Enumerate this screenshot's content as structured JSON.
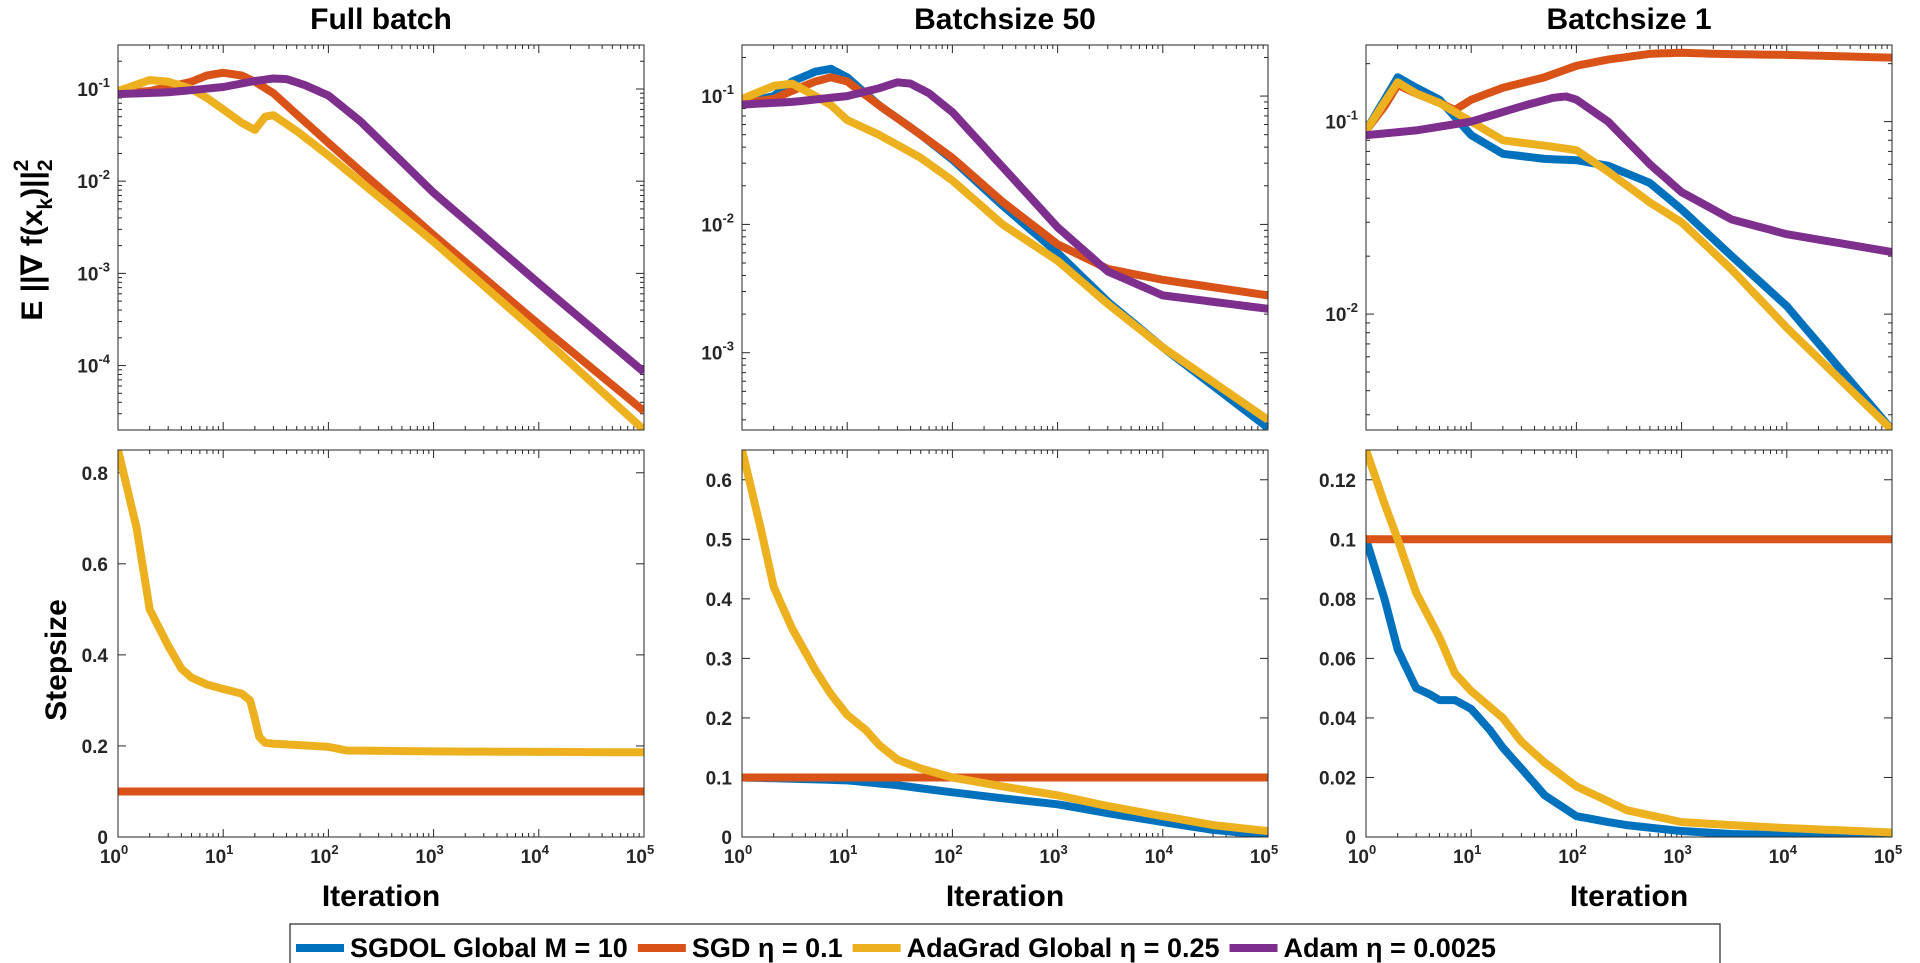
{
  "chart_data": [
    {
      "type": "line",
      "panel": "top-left",
      "title": "Full batch",
      "xscale": "log",
      "yscale": "log",
      "xlim": [
        1,
        100000
      ],
      "ylim": [
        2e-05,
        0.3
      ],
      "ylabel": "E ||∇ f(x_k)||_2^2",
      "xlabel": "",
      "yticks": [
        0.0001,
        0.001,
        0.01,
        0.1
      ],
      "series": [
        {
          "name": "SGD",
          "x": [
            1,
            2,
            3,
            5,
            7,
            10,
            15,
            20,
            30,
            100,
            1000,
            10000,
            100000
          ],
          "y": [
            0.09,
            0.095,
            0.105,
            0.12,
            0.14,
            0.15,
            0.14,
            0.12,
            0.09,
            0.026,
            0.0026,
            0.00028,
            3.2e-05
          ]
        },
        {
          "name": "AdaGrad Global",
          "x": [
            1,
            2,
            3,
            5,
            7,
            10,
            15,
            20,
            25,
            30,
            50,
            100,
            150,
            1000,
            10000,
            100000
          ],
          "y": [
            0.095,
            0.125,
            0.12,
            0.1,
            0.08,
            0.06,
            0.043,
            0.036,
            0.05,
            0.052,
            0.035,
            0.019,
            0.013,
            0.0022,
            0.00022,
            2e-05
          ]
        },
        {
          "name": "Adam",
          "x": [
            1,
            3,
            10,
            20,
            30,
            40,
            60,
            100,
            200,
            1000,
            10000,
            100000
          ],
          "y": [
            0.088,
            0.092,
            0.105,
            0.122,
            0.13,
            0.128,
            0.11,
            0.085,
            0.045,
            0.0075,
            0.00078,
            8.5e-05
          ]
        }
      ]
    },
    {
      "type": "line",
      "panel": "top-middle",
      "title": "Batchsize 50",
      "xscale": "log",
      "yscale": "log",
      "xlim": [
        1,
        100000
      ],
      "ylim": [
        0.00025,
        0.25
      ],
      "yticks": [
        0.001,
        0.01,
        0.1
      ],
      "series": [
        {
          "name": "SGDOL Global  M = 10",
          "x": [
            1,
            2,
            3,
            5,
            7,
            10,
            20,
            50,
            100,
            300,
            1000,
            3000,
            10000,
            100000
          ],
          "y": [
            0.088,
            0.1,
            0.13,
            0.155,
            0.163,
            0.14,
            0.085,
            0.05,
            0.032,
            0.014,
            0.006,
            0.0025,
            0.0011,
            0.00026
          ]
        },
        {
          "name": "SGD",
          "x": [
            1,
            2,
            3,
            5,
            7,
            10,
            20,
            50,
            100,
            300,
            1000,
            3000,
            10000,
            100000
          ],
          "y": [
            0.088,
            0.095,
            0.11,
            0.13,
            0.14,
            0.13,
            0.085,
            0.05,
            0.033,
            0.015,
            0.007,
            0.0045,
            0.0037,
            0.0028
          ]
        },
        {
          "name": "AdaGrad Global",
          "x": [
            1,
            2,
            3,
            5,
            7,
            10,
            20,
            50,
            100,
            300,
            1000,
            3000,
            10000,
            100000
          ],
          "y": [
            0.095,
            0.12,
            0.125,
            0.1,
            0.085,
            0.065,
            0.05,
            0.033,
            0.022,
            0.01,
            0.0052,
            0.0024,
            0.0011,
            0.0003
          ]
        },
        {
          "name": "Adam",
          "x": [
            1,
            3,
            10,
            20,
            30,
            40,
            60,
            100,
            300,
            1000,
            3000,
            10000,
            100000
          ],
          "y": [
            0.086,
            0.09,
            0.1,
            0.115,
            0.128,
            0.125,
            0.105,
            0.075,
            0.028,
            0.0095,
            0.0043,
            0.0028,
            0.0022
          ]
        }
      ]
    },
    {
      "type": "line",
      "panel": "top-right",
      "title": "Batchsize 1",
      "xscale": "log",
      "yscale": "log",
      "xlim": [
        1,
        100000
      ],
      "ylim": [
        0.0025,
        0.25
      ],
      "yticks": [
        0.01,
        0.1
      ],
      "series": [
        {
          "name": "SGDOL Global  M = 10",
          "x": [
            1,
            1.5,
            2,
            3,
            5,
            10,
            20,
            50,
            100,
            200,
            500,
            1000,
            3000,
            10000,
            100000
          ],
          "y": [
            0.09,
            0.13,
            0.17,
            0.15,
            0.13,
            0.085,
            0.068,
            0.064,
            0.063,
            0.059,
            0.048,
            0.035,
            0.02,
            0.011,
            0.0025
          ]
        },
        {
          "name": "SGD",
          "x": [
            1,
            1.5,
            2,
            3,
            5,
            7,
            10,
            20,
            50,
            100,
            200,
            500,
            1000,
            2000,
            10000,
            100000
          ],
          "y": [
            0.09,
            0.12,
            0.155,
            0.14,
            0.125,
            0.115,
            0.13,
            0.15,
            0.17,
            0.195,
            0.21,
            0.225,
            0.228,
            0.225,
            0.222,
            0.215
          ]
        },
        {
          "name": "AdaGrad Global",
          "x": [
            1,
            2,
            3,
            5,
            10,
            20,
            50,
            100,
            200,
            500,
            1000,
            3000,
            10000,
            100000
          ],
          "y": [
            0.09,
            0.16,
            0.14,
            0.125,
            0.1,
            0.08,
            0.075,
            0.071,
            0.055,
            0.038,
            0.03,
            0.017,
            0.0085,
            0.0025
          ]
        },
        {
          "name": "Adam",
          "x": [
            1,
            3,
            10,
            30,
            60,
            80,
            100,
            200,
            500,
            1000,
            3000,
            10000,
            100000
          ],
          "y": [
            0.085,
            0.09,
            0.1,
            0.12,
            0.133,
            0.135,
            0.13,
            0.1,
            0.06,
            0.043,
            0.031,
            0.026,
            0.021
          ]
        }
      ]
    },
    {
      "type": "line",
      "panel": "bottom-left",
      "title": "",
      "xscale": "log",
      "yscale": "linear",
      "xlim": [
        1,
        100000
      ],
      "ylim": [
        0,
        0.85
      ],
      "yticks": [
        0,
        0.2,
        0.4,
        0.6,
        0.8
      ],
      "ytick_labels": [
        "0",
        "0.2",
        "0.4",
        "0.6",
        "0.8"
      ],
      "xlabel": "Iteration",
      "ylabel": "Stepsize",
      "series": [
        {
          "name": "SGD",
          "x": [
            1,
            100000
          ],
          "y": [
            0.1,
            0.1
          ]
        },
        {
          "name": "AdaGrad Global",
          "x": [
            1,
            1.5,
            2,
            3,
            4,
            5,
            7,
            10,
            15,
            18,
            20,
            22,
            25,
            30,
            50,
            100,
            150,
            1000,
            10000,
            100000
          ],
          "y": [
            0.85,
            0.68,
            0.5,
            0.42,
            0.37,
            0.35,
            0.335,
            0.325,
            0.315,
            0.3,
            0.26,
            0.22,
            0.207,
            0.205,
            0.202,
            0.198,
            0.19,
            0.188,
            0.187,
            0.186
          ]
        }
      ]
    },
    {
      "type": "line",
      "panel": "bottom-middle",
      "title": "",
      "xscale": "log",
      "yscale": "linear",
      "xlim": [
        1,
        100000
      ],
      "ylim": [
        0,
        0.65
      ],
      "yticks": [
        0,
        0.1,
        0.2,
        0.3,
        0.4,
        0.5,
        0.6
      ],
      "ytick_labels": [
        "0",
        "0.1",
        "0.2",
        "0.3",
        "0.4",
        "0.5",
        "0.6"
      ],
      "xlabel": "Iteration",
      "series": [
        {
          "name": "SGDOL Global  M = 10",
          "x": [
            1,
            3,
            10,
            30,
            100,
            300,
            1000,
            3000,
            10000,
            30000,
            100000
          ],
          "y": [
            0.1,
            0.098,
            0.095,
            0.087,
            0.075,
            0.065,
            0.055,
            0.04,
            0.025,
            0.012,
            0.003
          ]
        },
        {
          "name": "SGD",
          "x": [
            1,
            100000
          ],
          "y": [
            0.1,
            0.1
          ]
        },
        {
          "name": "AdaGrad Global",
          "x": [
            1,
            1.5,
            2,
            3,
            5,
            7,
            10,
            15,
            20,
            30,
            50,
            100,
            300,
            1000,
            3000,
            10000,
            30000,
            100000
          ],
          "y": [
            0.65,
            0.52,
            0.42,
            0.35,
            0.28,
            0.24,
            0.205,
            0.18,
            0.155,
            0.13,
            0.115,
            0.1,
            0.085,
            0.07,
            0.052,
            0.035,
            0.02,
            0.01
          ]
        }
      ]
    },
    {
      "type": "line",
      "panel": "bottom-right",
      "title": "",
      "xscale": "log",
      "yscale": "linear",
      "xlim": [
        1,
        100000
      ],
      "ylim": [
        0,
        0.13
      ],
      "yticks": [
        0,
        0.02,
        0.04,
        0.06,
        0.08,
        0.1,
        0.12
      ],
      "ytick_labels": [
        "0",
        "0.02",
        "0.04",
        "0.06",
        "0.08",
        "0.1",
        "0.12"
      ],
      "xlabel": "Iteration",
      "series": [
        {
          "name": "SGDOL Global  M = 10",
          "x": [
            1,
            1.5,
            2,
            3,
            4,
            5,
            7,
            10,
            15,
            20,
            30,
            50,
            100,
            200,
            300,
            1000,
            3000,
            10000,
            100000
          ],
          "y": [
            0.1,
            0.08,
            0.063,
            0.05,
            0.048,
            0.046,
            0.046,
            0.043,
            0.036,
            0.03,
            0.023,
            0.014,
            0.007,
            0.005,
            0.004,
            0.002,
            0.001,
            0.0006,
            0.0002
          ]
        },
        {
          "name": "SGD",
          "x": [
            1,
            100000
          ],
          "y": [
            0.1,
            0.1
          ]
        },
        {
          "name": "AdaGrad Global",
          "x": [
            1,
            1.5,
            2,
            3,
            5,
            7,
            10,
            20,
            30,
            50,
            100,
            200,
            300,
            1000,
            3000,
            10000,
            100000
          ],
          "y": [
            0.13,
            0.112,
            0.1,
            0.082,
            0.067,
            0.055,
            0.049,
            0.04,
            0.032,
            0.025,
            0.017,
            0.012,
            0.009,
            0.005,
            0.004,
            0.003,
            0.0015
          ]
        }
      ]
    }
  ],
  "colors": {
    "SGDOL Global  M = 10": "#0072BD",
    "SGD": "#D95319",
    "AdaGrad Global": "#EDB120",
    "Adam": "#7E2F8E"
  },
  "legend": {
    "position": "bottom-center",
    "items": [
      {
        "series": "SGDOL Global  M = 10",
        "label": "SGDOL Global  M = 10"
      },
      {
        "series": "SGD",
        "label": "SGD  η = 0.1"
      },
      {
        "series": "AdaGrad Global",
        "label": "AdaGrad Global  η = 0.25"
      },
      {
        "series": "Adam",
        "label": "Adam  η = 0.0025"
      }
    ]
  },
  "xtick_labels": {
    "base": "10",
    "exponents": [
      "0",
      "1",
      "2",
      "3",
      "4",
      "5"
    ]
  },
  "ytick_log_base": "10",
  "axis_labels": {
    "top_ylabel": "E ||∇ f(x",
    "top_ylabel_sub": "k",
    "top_ylabel_tail": ")||",
    "top_ylabel_sub2": "2",
    "top_ylabel_sup": "2",
    "bottom_ylabel": "Stepsize",
    "xlabel": "Iteration"
  }
}
